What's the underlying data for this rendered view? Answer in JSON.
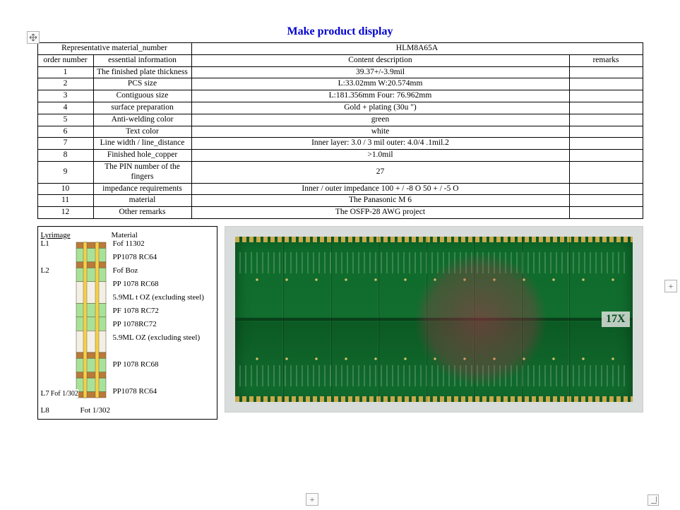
{
  "title": "Make product display",
  "title_color": "#0000d0",
  "header": {
    "rep_label": "Representative material_number",
    "rep_value": "HLM8A65A",
    "col_order": "order number",
    "col_info": "essential information",
    "col_desc": "Content description",
    "col_rem": "remarks"
  },
  "rows": [
    {
      "n": "1",
      "label": "The finished plate thickness",
      "desc": "39.37+/-3.9mil",
      "rem": ""
    },
    {
      "n": "2",
      "label": "PCS size",
      "desc": "L:33.02mm    W:20.574mm",
      "rem": ""
    },
    {
      "n": "3",
      "label": "Contiguous size",
      "desc": "L:181.356mm Four: 76.962mm",
      "rem": ""
    },
    {
      "n": "4",
      "label": "surface preparation",
      "desc": "Gold + plating (30u \")",
      "rem": ""
    },
    {
      "n": "5",
      "label": "Anti-welding color",
      "desc": "green",
      "rem": ""
    },
    {
      "n": "6",
      "label": "Text color",
      "desc": "white",
      "rem": ""
    },
    {
      "n": "7",
      "label": "Line width / line_distance",
      "desc": "Inner layer: 3.0 / 3 mil outer: 4.0/4 .1mil.2",
      "rem": ""
    },
    {
      "n": "8",
      "label": "Finished hole_copper",
      "desc": ">1.0mil",
      "rem": ""
    },
    {
      "n": "9",
      "label": "The PIN number of the fingers",
      "desc": "27",
      "rem": ""
    },
    {
      "n": "10",
      "label": "impedance requirements",
      "desc": "Inner / outer impedance 100 + / -8 O 50 + / -5 O",
      "rem": ""
    },
    {
      "n": "11",
      "label": "material",
      "desc": "The Panasonic M 6",
      "rem": ""
    },
    {
      "n": "12",
      "label": "Other remarks",
      "desc": "The OSFP-28 AWG project",
      "rem": ""
    }
  ],
  "stackup": {
    "head_lyr": "Lyr",
    "head_img": "image",
    "head_mat": "Material",
    "layer_labels": [
      "L1",
      "",
      "L2",
      "",
      "",
      "",
      "",
      "",
      "",
      "",
      "",
      ""
    ],
    "l7": "L7",
    "l7extra": "Fof  1/302",
    "l8": "L8",
    "l8fot": "Fot 1/302",
    "materials": [
      "Fof 11302",
      "PP1078 RC64",
      "Fof Boz",
      "PP 1078 RC68",
      "5.9ML t OZ (excluding steel)",
      "PF 1078 RC72",
      "PP 1078RC72",
      "5.9ML OZ (excluding steel)",
      " ",
      "PP 1078 RC68",
      " ",
      "PP1078 RC64"
    ],
    "colors": {
      "copper": "#b97a3a",
      "prepreg": "#a8e29a",
      "core": "#f2efe6",
      "via": "#f5d04a",
      "border": "#5a4a2a"
    }
  },
  "photo": {
    "bg": "#d8dddc",
    "board": "#126e2f",
    "watermark": "rgba(200,40,80,0.4)",
    "label_17x": "17X"
  },
  "controls": {
    "move_tooltip": "Move",
    "add_tooltip": "+",
    "resize_tooltip": "Resize"
  }
}
